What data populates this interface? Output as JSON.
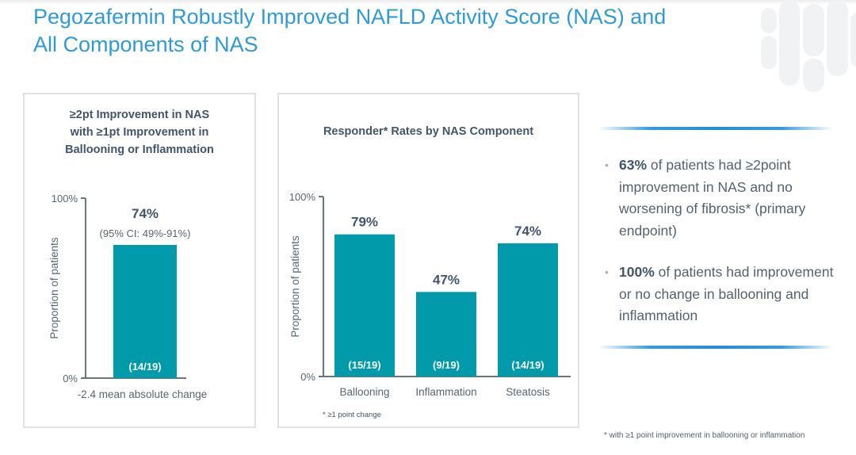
{
  "slide": {
    "title_line1": "Pegozafermin Robustly Improved NAFLD Activity Score (NAS) and",
    "title_line2": "All Components of NAS",
    "accent_color": "#2f9bd6",
    "bar_color": "#009aaa"
  },
  "chart_data": [
    {
      "type": "bar",
      "title_lines": [
        "≥2pt Improvement in NAS",
        "with ≥1pt Improvement in",
        "Ballooning or Inflammation"
      ],
      "categories": [
        ""
      ],
      "values": [
        74
      ],
      "value_labels": [
        "74%"
      ],
      "count_labels": [
        "(14/19)"
      ],
      "annotation": "(95% CI: 49%-91%)",
      "xlabel": "-2.4 mean absolute change",
      "ylabel": "Proportion of patients",
      "ytick_labels": [
        "0%",
        "100%"
      ],
      "ylim": [
        0,
        100
      ],
      "grid": false
    },
    {
      "type": "bar",
      "title": "Responder* Rates by NAS Component",
      "categories": [
        "Ballooning",
        "Inflammation",
        "Steatosis"
      ],
      "values": [
        79,
        47,
        74
      ],
      "value_labels": [
        "79%",
        "47%",
        "74%"
      ],
      "count_labels": [
        "(15/19)",
        "(9/19)",
        "(14/19)"
      ],
      "ylabel": "Proportion of patients",
      "ytick_labels": [
        "0%",
        "100%"
      ],
      "ylim": [
        0,
        100
      ],
      "grid": false,
      "footnote": "* ≥1 point change"
    }
  ],
  "sidebar": {
    "bullets": [
      {
        "bold": "63%",
        "text": " of patients had ≥2point improvement in NAS and no worsening of fibrosis* (primary endpoint)"
      },
      {
        "bold": "100%",
        "text": " of patients had improvement or no change in ballooning and inflammation"
      }
    ],
    "bullet_glyph": "•"
  },
  "footnote": "* with ≥1 point improvement in ballooning or inflammation"
}
